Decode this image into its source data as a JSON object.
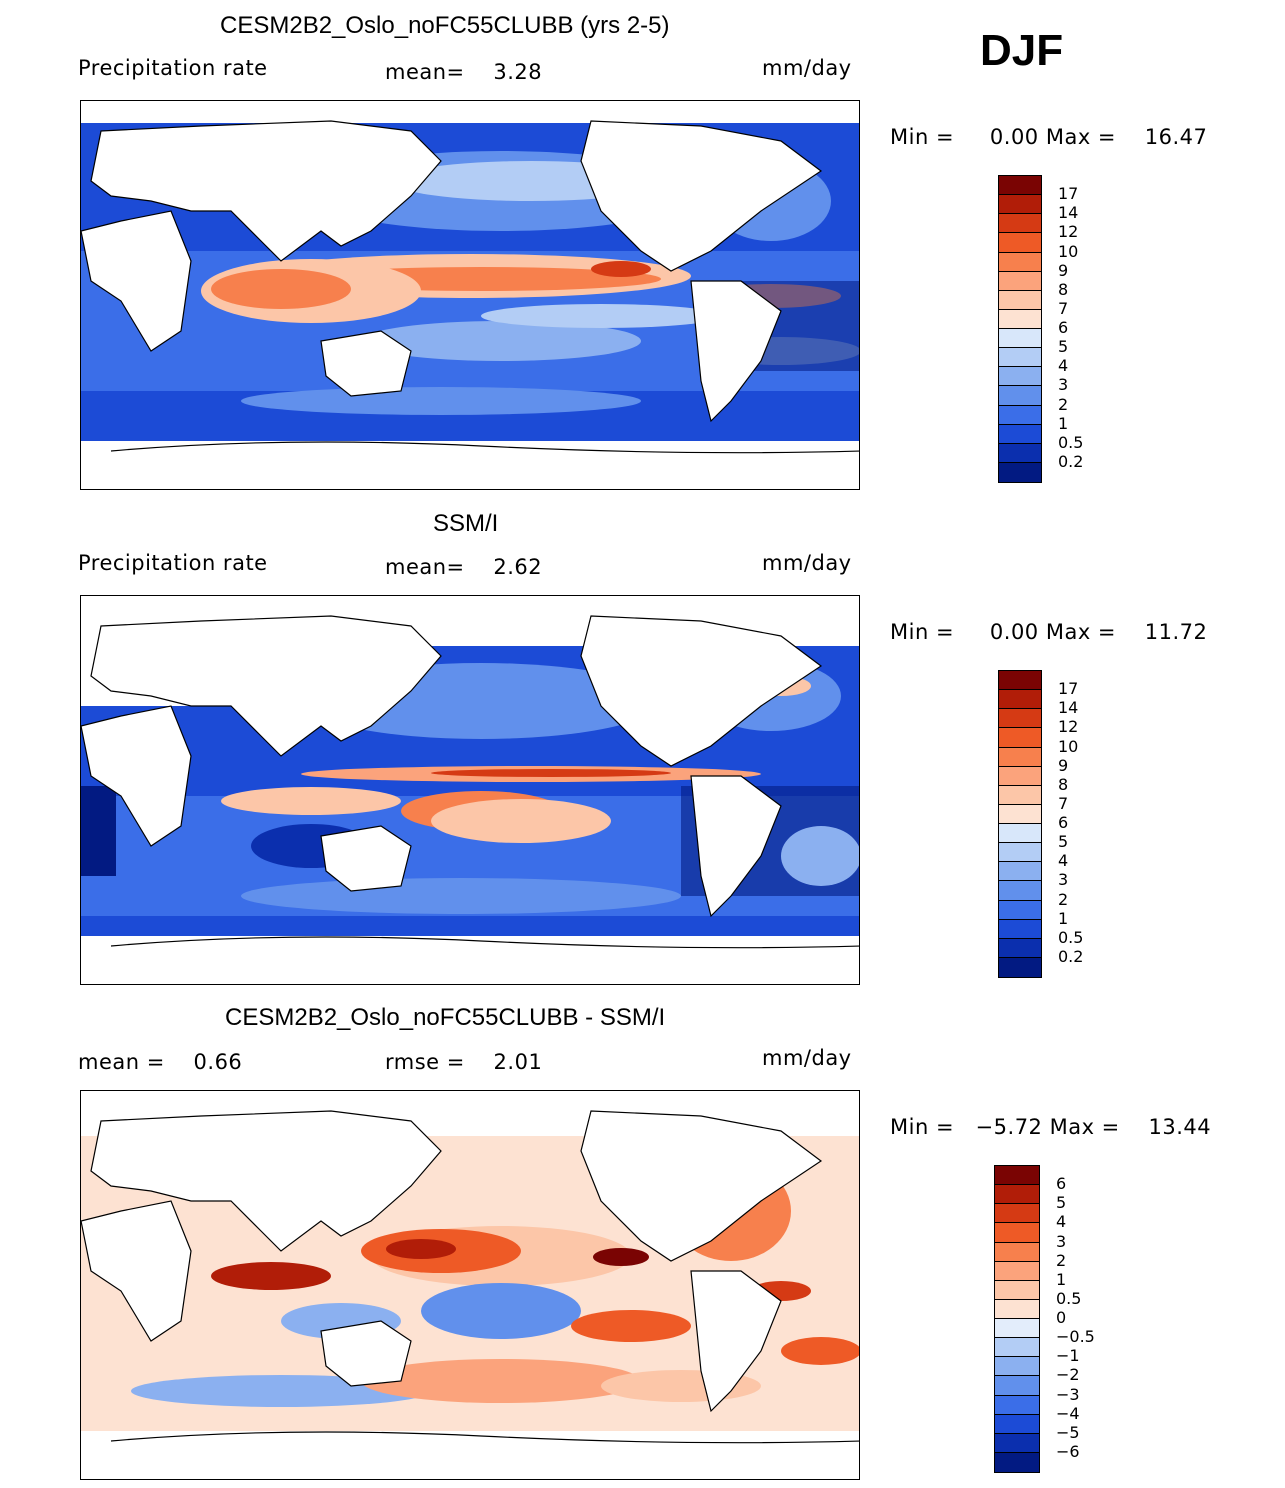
{
  "season": "DJF",
  "panels": [
    {
      "title": "CESM2B2_Oslo_noFC55CLUBB (yrs 2-5)",
      "left_label": "Precipitation rate",
      "stat1": "mean=    3.28",
      "stat2": "",
      "units": "mm/day",
      "minmax": "Min =     0.00 Max =    16.47"
    },
    {
      "title": "SSM/I",
      "left_label": "Precipitation rate",
      "stat1": "mean=    2.62",
      "stat2": "",
      "units": "mm/day",
      "minmax": "Min =     0.00 Max =    11.72"
    },
    {
      "title": "CESM2B2_Oslo_noFC55CLUBB - SSM/I",
      "left_label": "mean =    0.66",
      "stat1": "",
      "stat2": "rmse =    2.01",
      "units": "mm/day",
      "minmax": "Min =   −5.72 Max =    13.44"
    }
  ],
  "chart_data": [
    {
      "type": "heatmap",
      "title": "CESM2B2_Oslo_noFC55CLUBB (yrs 2-5)",
      "variable": "Precipitation rate",
      "units": "mm/day",
      "mean": 3.28,
      "min": 0.0,
      "max": 16.47,
      "levels": [
        "17",
        "14",
        "12",
        "10",
        "9",
        "8",
        "7",
        "6",
        "5",
        "4",
        "3",
        "2",
        "1",
        "0.5",
        "0.2"
      ],
      "colors": [
        "#7a0403",
        "#b11d08",
        "#d53a14",
        "#ee5a26",
        "#f7804d",
        "#fba37c",
        "#fcc6a8",
        "#fde2d2",
        "#d8e7fa",
        "#b3cdf5",
        "#8bb0f0",
        "#6190ec",
        "#3b6ee8",
        "#1c4bd6",
        "#0b2fae",
        "#021a82"
      ]
    },
    {
      "type": "heatmap",
      "title": "SSM/I",
      "variable": "Precipitation rate",
      "units": "mm/day",
      "mean": 2.62,
      "min": 0.0,
      "max": 11.72,
      "levels": [
        "17",
        "14",
        "12",
        "10",
        "9",
        "8",
        "7",
        "6",
        "5",
        "4",
        "3",
        "2",
        "1",
        "0.5",
        "0.2"
      ],
      "colors": [
        "#7a0403",
        "#b11d08",
        "#d53a14",
        "#ee5a26",
        "#f7804d",
        "#fba37c",
        "#fcc6a8",
        "#fde2d2",
        "#d8e7fa",
        "#b3cdf5",
        "#8bb0f0",
        "#6190ec",
        "#3b6ee8",
        "#1c4bd6",
        "#0b2fae",
        "#021a82"
      ]
    },
    {
      "type": "heatmap",
      "title": "CESM2B2_Oslo_noFC55CLUBB - SSM/I",
      "units": "mm/day",
      "mean": 0.66,
      "rmse": 2.01,
      "min": -5.72,
      "max": 13.44,
      "levels": [
        "6",
        "5",
        "4",
        "3",
        "2",
        "1",
        "0.5",
        "0",
        "−0.5",
        "−1",
        "−2",
        "−3",
        "−4",
        "−5",
        "−6"
      ],
      "colors": [
        "#7a0403",
        "#b11d08",
        "#d53a14",
        "#ee5a26",
        "#f7804d",
        "#fba37c",
        "#fcc6a8",
        "#fde2d2",
        "#e3edfb",
        "#b3cdf5",
        "#8bb0f0",
        "#6190ec",
        "#3b6ee8",
        "#1c4bd6",
        "#0b2fae",
        "#021a82"
      ]
    }
  ]
}
